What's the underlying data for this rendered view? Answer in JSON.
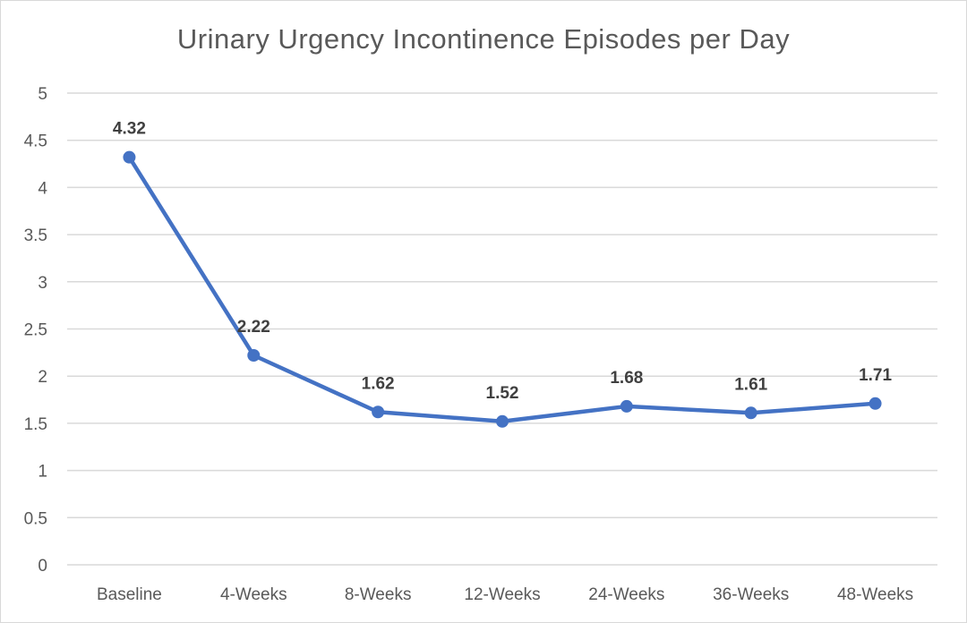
{
  "chart_data": {
    "type": "line",
    "title": "Urinary Urgency Incontinence Episodes per Day",
    "categories": [
      "Baseline",
      "4-Weeks",
      "8-Weeks",
      "12-Weeks",
      "24-Weeks",
      "36-Weeks",
      "48-Weeks"
    ],
    "series": [
      {
        "values": [
          4.32,
          2.22,
          1.62,
          1.52,
          1.68,
          1.61,
          1.71
        ],
        "data_labels": [
          "4.32",
          "2.22",
          "1.62",
          "1.52",
          "1.68",
          "1.61",
          "1.71"
        ],
        "color": "#4472c4"
      }
    ],
    "ylim": [
      0,
      5
    ],
    "yticks": [
      "0",
      "0.5",
      "1",
      "1.5",
      "2",
      "2.5",
      "3",
      "3.5",
      "4",
      "4.5",
      "5"
    ],
    "xlabel": "",
    "ylabel": "",
    "grid": true,
    "legend": "none"
  }
}
